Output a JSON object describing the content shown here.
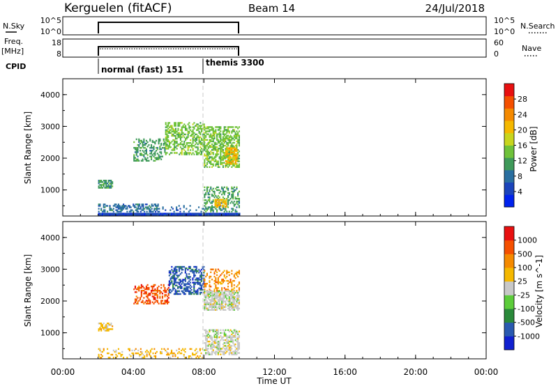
{
  "header": {
    "station": "Kerguelen (fitACF)",
    "beam": "Beam 14",
    "date": "24/Jul/2018"
  },
  "nsky_panel": {
    "left_label": "N.Sky",
    "left_ticks": [
      "10^5",
      "10^0"
    ],
    "right_ticks": [
      "10^5",
      "10^0"
    ],
    "right_label": "N.Search"
  },
  "freq_panel": {
    "left_label_1": "Freq.",
    "left_label_2": "[MHz]",
    "left_ticks": [
      "18",
      "8"
    ],
    "right_ticks": [
      "60",
      "0"
    ],
    "right_label": "Nave"
  },
  "cpid": {
    "label": "CPID",
    "modes": [
      {
        "name": "normal (fast) 151",
        "start_hour": 2.0
      },
      {
        "name": "themis 3300",
        "start_hour": 8.0
      }
    ]
  },
  "chart_data": [
    {
      "type": "heatmap",
      "title": "",
      "xlabel": "Time UT",
      "ylabel": "Slant Range [km]",
      "x_range_hours": [
        0,
        24
      ],
      "x_ticks": [
        "00:00",
        "04:00",
        "08:00",
        "12:00",
        "16:00",
        "20:00",
        "00:00"
      ],
      "y_range": [
        180,
        4500
      ],
      "y_ticks": [
        1000,
        2000,
        3000,
        4000
      ],
      "data_window_hours": [
        2.0,
        10.0
      ],
      "colorbar": {
        "label": "Power [dB]",
        "range": [
          0,
          32
        ],
        "ticks": [
          "4",
          "8",
          "12",
          "16",
          "20",
          "24",
          "28"
        ],
        "colors": [
          "#0022ee",
          "#1b44bb",
          "#2a6fa0",
          "#3f9a5a",
          "#6fc23a",
          "#c8d51e",
          "#f5b800",
          "#f58a00",
          "#f55000",
          "#e81010"
        ]
      },
      "clusters": [
        {
          "t0": 2.0,
          "t1": 10.0,
          "r0": 190,
          "r1": 280,
          "level": 1,
          "density": 1.0
        },
        {
          "t0": 2.0,
          "t1": 5.5,
          "r0": 300,
          "r1": 560,
          "level": 2,
          "density": 0.45
        },
        {
          "t0": 5.5,
          "t1": 8.0,
          "r0": 300,
          "r1": 500,
          "level": 2,
          "density": 0.18
        },
        {
          "t0": 8.0,
          "t1": 10.0,
          "r0": 300,
          "r1": 1100,
          "level": 3,
          "density": 0.4
        },
        {
          "t0": 8.6,
          "t1": 9.3,
          "r0": 450,
          "r1": 700,
          "level": 6,
          "density": 0.7
        },
        {
          "t0": 2.0,
          "t1": 2.8,
          "r0": 1050,
          "r1": 1300,
          "level": 3,
          "density": 0.7
        },
        {
          "t0": 4.0,
          "t1": 5.8,
          "r0": 1900,
          "r1": 2600,
          "level": 3,
          "density": 0.4
        },
        {
          "t0": 5.8,
          "t1": 8.0,
          "r0": 2100,
          "r1": 3100,
          "level": 4,
          "density": 0.5
        },
        {
          "t0": 8.0,
          "t1": 10.0,
          "r0": 1700,
          "r1": 3000,
          "level": 4,
          "density": 0.55
        },
        {
          "t0": 9.2,
          "t1": 9.9,
          "r0": 1800,
          "r1": 2300,
          "level": 6,
          "density": 0.75
        }
      ]
    },
    {
      "type": "heatmap",
      "title": "",
      "xlabel": "Time UT",
      "ylabel": "Slant Range [km]",
      "x_range_hours": [
        0,
        24
      ],
      "x_ticks": [
        "00:00",
        "04:00",
        "08:00",
        "12:00",
        "16:00",
        "20:00",
        "00:00"
      ],
      "y_range": [
        180,
        4500
      ],
      "y_ticks": [
        1000,
        2000,
        3000,
        4000
      ],
      "data_window_hours": [
        2.0,
        10.0
      ],
      "colorbar": {
        "label": "Velocity [m s^-1]",
        "ticks": [
          "1000",
          "500",
          "100",
          "25",
          "-25",
          "-100",
          "-500",
          "-1000"
        ],
        "colors": [
          "#1020d0",
          "#2a5ab0",
          "#2a8a3a",
          "#5ccc3a",
          "#c8c8c8",
          "#f5b800",
          "#f58a00",
          "#f55000",
          "#e81010"
        ]
      },
      "clusters": [
        {
          "t0": 2.0,
          "t1": 8.0,
          "r0": 200,
          "r1": 500,
          "level": 5,
          "density": 0.25
        },
        {
          "t0": 2.0,
          "t1": 2.8,
          "r0": 1050,
          "r1": 1300,
          "level": 5,
          "density": 0.65
        },
        {
          "t0": 8.0,
          "t1": 10.0,
          "r0": 300,
          "r1": 1100,
          "level": 4,
          "density": 0.55
        },
        {
          "t0": 4.0,
          "t1": 6.0,
          "r0": 1900,
          "r1": 2500,
          "level": 7,
          "density": 0.45
        },
        {
          "t0": 6.0,
          "t1": 8.0,
          "r0": 2200,
          "r1": 3100,
          "level": 1,
          "density": 0.5
        },
        {
          "t0": 8.0,
          "t1": 10.0,
          "r0": 2300,
          "r1": 3000,
          "level": 6,
          "density": 0.35
        },
        {
          "t0": 8.0,
          "t1": 10.0,
          "r0": 1700,
          "r1": 2300,
          "level": 4,
          "density": 0.7
        }
      ]
    }
  ]
}
